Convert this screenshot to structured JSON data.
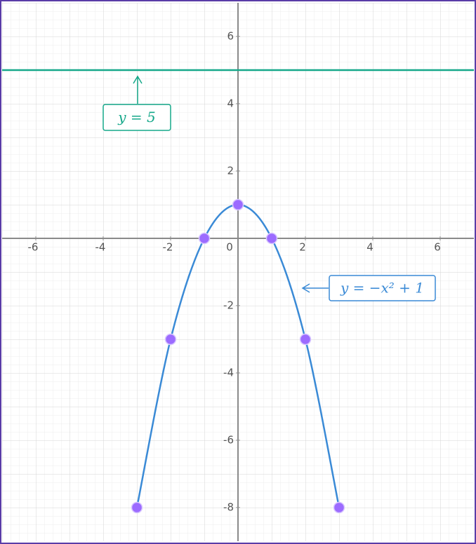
{
  "chart_data": {
    "type": "line",
    "xlim": [
      -7,
      7
    ],
    "ylim": [
      -9,
      7
    ],
    "xticks": [
      -6,
      -4,
      -2,
      0,
      2,
      4,
      6
    ],
    "yticks": [
      -8,
      -6,
      -4,
      -2,
      2,
      4,
      6
    ],
    "grid": true,
    "series": [
      {
        "name": "y = 5",
        "color": "#16a88a",
        "x": [
          -7,
          7
        ],
        "values": [
          5,
          5
        ]
      },
      {
        "name": "y = −x² + 1",
        "color": "#3a8ad6",
        "marker_color": "#9c6bff",
        "x": [
          -3,
          -2,
          -1,
          0,
          1,
          2,
          3
        ],
        "values": [
          -8,
          -3,
          0,
          1,
          0,
          -3,
          -8
        ]
      }
    ]
  }
}
